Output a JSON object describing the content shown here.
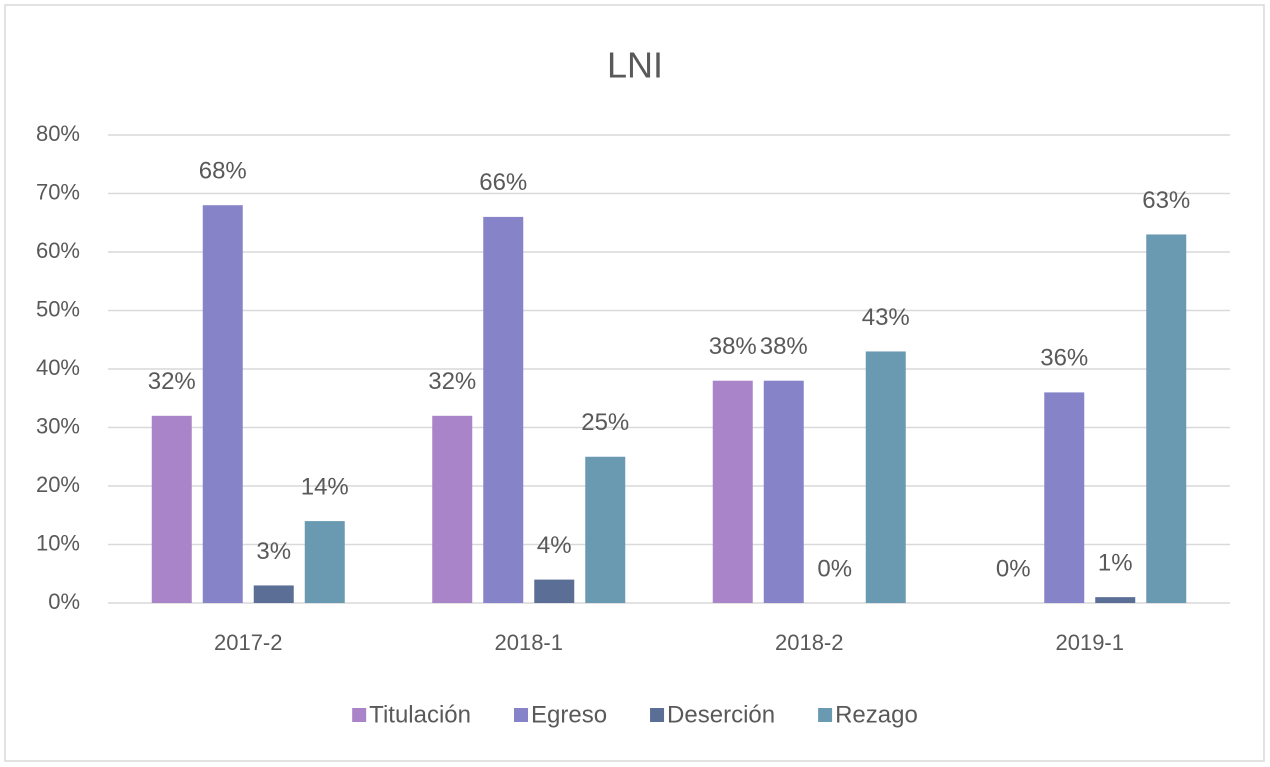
{
  "chart_data": {
    "type": "bar",
    "title": "LNI",
    "categories": [
      "2017-2",
      "2018-1",
      "2018-2",
      "2019-1"
    ],
    "series": [
      {
        "name": "Titulación",
        "color": "#a984c8",
        "values": [
          32,
          32,
          38,
          0
        ],
        "value_labels": [
          "32%",
          "32%",
          "38%",
          "0%"
        ]
      },
      {
        "name": "Egreso",
        "color": "#8783c8",
        "values": [
          68,
          66,
          38,
          36
        ],
        "value_labels": [
          "68%",
          "66%",
          "38%",
          "36%"
        ]
      },
      {
        "name": "Deserción",
        "color": "#5a6e96",
        "values": [
          3,
          4,
          0,
          1
        ],
        "value_labels": [
          "3%",
          "4%",
          "0%",
          "1%"
        ]
      },
      {
        "name": "Rezago",
        "color": "#6a9ab2",
        "values": [
          14,
          25,
          43,
          63
        ],
        "value_labels": [
          "14%",
          "25%",
          "43%",
          "63%"
        ]
      }
    ],
    "ylim": [
      0,
      80
    ],
    "yticks": [
      {
        "value": 0,
        "label": "0%"
      },
      {
        "value": 10,
        "label": "10%"
      },
      {
        "value": 20,
        "label": "20%"
      },
      {
        "value": 30,
        "label": "30%"
      },
      {
        "value": 40,
        "label": "40%"
      },
      {
        "value": 50,
        "label": "50%"
      },
      {
        "value": 60,
        "label": "60%"
      },
      {
        "value": 70,
        "label": "70%"
      },
      {
        "value": 80,
        "label": "80%"
      }
    ],
    "grid": true,
    "legend": "bottom"
  }
}
